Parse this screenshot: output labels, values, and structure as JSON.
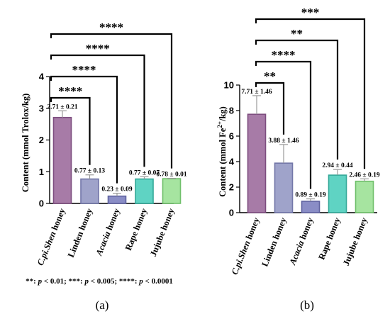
{
  "chart_data": [
    {
      "type": "bar",
      "panel_label": "(a)",
      "ylabel_prefix": "Content (mmol Trolox/kg)",
      "ylabel_sup": "",
      "ylabel_suffix": "",
      "ylim": [
        0,
        4
      ],
      "yticks": [
        "0",
        "1",
        "2",
        "3",
        "4"
      ],
      "categories": [
        {
          "pre": "C.pi.Shen",
          "post": " honey",
          "italic": true
        },
        {
          "pre": "Linden honey",
          "post": "",
          "italic": false
        },
        {
          "pre": "Acacia",
          "post": " honey",
          "italic": true
        },
        {
          "pre": "Rape honey",
          "post": "",
          "italic": false
        },
        {
          "pre": "Jujube honey",
          "post": "",
          "italic": false
        }
      ],
      "values": [
        2.71,
        0.77,
        0.23,
        0.77,
        0.78
      ],
      "errors": [
        0.21,
        0.13,
        0.09,
        0.07,
        0.01
      ],
      "data_labels": [
        "2.71 ± 0.21",
        "0.77 ± 0.13",
        "0.23 ± 0.09",
        "0.77 ± 0.07",
        "0.78 ± 0.01"
      ],
      "colors": [
        "#a77ba7",
        "#9fa3ca",
        "#8a8dc6",
        "#5fd3c3",
        "#a6e4a0"
      ],
      "stroke_colors": [
        "#7d4d7f",
        "#7276a8",
        "#5f62a0",
        "#34a898",
        "#6fbf6a"
      ],
      "significance": [
        {
          "to": 1,
          "label": "****"
        },
        {
          "to": 2,
          "label": "****"
        },
        {
          "to": 3,
          "label": "****"
        },
        {
          "to": 4,
          "label": "****"
        }
      ],
      "footnote": [
        {
          "t": "**: ",
          "i": false
        },
        {
          "t": "p",
          "i": true
        },
        {
          "t": " < 0.01; ***: ",
          "i": false
        },
        {
          "t": "p",
          "i": true
        },
        {
          "t": " < 0.005; ****: ",
          "i": false
        },
        {
          "t": "p",
          "i": true
        },
        {
          "t": " < 0.0001",
          "i": false
        }
      ]
    },
    {
      "type": "bar",
      "panel_label": "(b)",
      "ylabel_prefix": "Content (mmol Fe",
      "ylabel_sup": "2+",
      "ylabel_suffix": "/kg)",
      "ylim": [
        0,
        10
      ],
      "yticks": [
        "0",
        "2",
        "4",
        "6",
        "8",
        "10"
      ],
      "categories": [
        {
          "pre": "C.pi.Shen",
          "post": " honey",
          "italic": true
        },
        {
          "pre": "Linden honey",
          "post": "",
          "italic": false
        },
        {
          "pre": "Acacia",
          "post": " honey",
          "italic": true
        },
        {
          "pre": "Rape honey",
          "post": "",
          "italic": false
        },
        {
          "pre": "Jujube honey",
          "post": "",
          "italic": false
        }
      ],
      "values": [
        7.71,
        3.88,
        0.89,
        2.94,
        2.46
      ],
      "errors": [
        1.46,
        1.46,
        0.19,
        0.44,
        0.19
      ],
      "data_labels": [
        "7.71 ± 1.46",
        "3.88 ± 1.46",
        "0.89 ± 0.19",
        "2.94 ± 0.44",
        "2.46 ± 0.19"
      ],
      "colors": [
        "#a77ba7",
        "#9fa3ca",
        "#8a8dc6",
        "#5fd3c3",
        "#a6e4a0"
      ],
      "stroke_colors": [
        "#7d4d7f",
        "#7276a8",
        "#5f62a0",
        "#34a898",
        "#6fbf6a"
      ],
      "significance": [
        {
          "to": 1,
          "label": "**"
        },
        {
          "to": 2,
          "label": "****"
        },
        {
          "to": 3,
          "label": "**"
        },
        {
          "to": 4,
          "label": "***"
        }
      ]
    }
  ]
}
